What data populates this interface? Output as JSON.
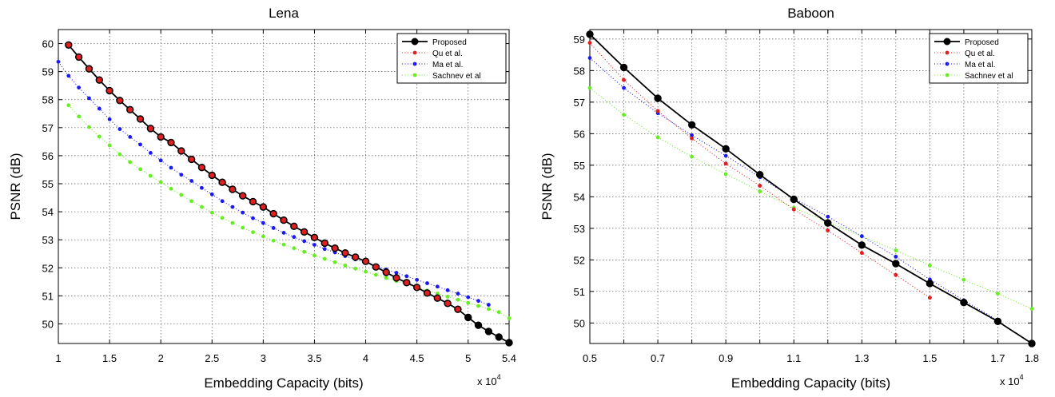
{
  "chart_data": [
    {
      "type": "line",
      "title": "Lena",
      "xlabel": "Embedding Capacity (bits)",
      "ylabel": "PSNR (dB)",
      "x_multiplier": {
        "base": "x 10",
        "exp": "4"
      },
      "xlim": [
        1,
        5.4
      ],
      "ylim": [
        49.3,
        60.5
      ],
      "x_ticks": [
        "1",
        "1.5",
        "2",
        "2.5",
        "3",
        "3.5",
        "4",
        "4.5",
        "5",
        "5.4"
      ],
      "y_ticks": [
        "50",
        "51",
        "52",
        "53",
        "54",
        "55",
        "56",
        "57",
        "58",
        "59",
        "60"
      ],
      "grid": true,
      "legend_position": "top-right",
      "series": [
        {
          "name": "Proposed",
          "color": "#000000",
          "style": "solid",
          "marker": "filled-circle",
          "x": [
            1.1,
            1.2,
            1.3,
            1.4,
            1.5,
            1.6,
            1.7,
            1.8,
            1.9,
            2.0,
            2.1,
            2.2,
            2.3,
            2.4,
            2.5,
            2.6,
            2.7,
            2.8,
            2.9,
            3.0,
            3.1,
            3.2,
            3.3,
            3.4,
            3.5,
            3.6,
            3.7,
            3.8,
            3.9,
            4.0,
            4.1,
            4.2,
            4.3,
            4.4,
            4.5,
            4.6,
            4.7,
            4.8,
            4.9,
            5.0,
            5.1,
            5.2,
            5.3,
            5.4
          ],
          "y": [
            59.95,
            59.52,
            59.1,
            58.7,
            58.32,
            57.97,
            57.64,
            57.31,
            56.97,
            56.67,
            56.47,
            56.17,
            55.87,
            55.58,
            55.3,
            55.05,
            54.8,
            54.57,
            54.36,
            54.17,
            53.93,
            53.7,
            53.48,
            53.28,
            53.08,
            52.88,
            52.7,
            52.53,
            52.38,
            52.23,
            52.03,
            51.84,
            51.64,
            51.47,
            51.3,
            51.1,
            50.92,
            50.73,
            50.52,
            50.23,
            49.95,
            49.73,
            49.53,
            49.33
          ]
        },
        {
          "name": "Qu et al.",
          "color": "#e02020",
          "style": "dotted",
          "marker": "dot",
          "x": [
            1.1,
            1.2,
            1.3,
            1.4,
            1.5,
            1.6,
            1.7,
            1.8,
            1.9,
            2.0,
            2.1,
            2.2,
            2.3,
            2.4,
            2.5,
            2.6,
            2.7,
            2.8,
            2.9,
            3.0,
            3.1,
            3.2,
            3.3,
            3.4,
            3.5,
            3.6,
            3.7,
            3.8,
            3.9,
            4.0,
            4.1,
            4.2,
            4.3,
            4.4,
            4.5,
            4.6,
            4.7,
            4.8,
            4.9
          ],
          "y": [
            59.95,
            59.52,
            59.1,
            58.7,
            58.32,
            57.97,
            57.64,
            57.31,
            56.97,
            56.67,
            56.47,
            56.17,
            55.87,
            55.58,
            55.3,
            55.05,
            54.8,
            54.57,
            54.36,
            54.17,
            53.93,
            53.7,
            53.48,
            53.28,
            53.08,
            52.88,
            52.7,
            52.53,
            52.38,
            52.23,
            52.03,
            51.84,
            51.64,
            51.47,
            51.3,
            51.1,
            50.92,
            50.73,
            50.52
          ]
        },
        {
          "name": "Ma et al.",
          "color": "#1a1aee",
          "style": "dotted",
          "marker": "dot",
          "x": [
            1.0,
            1.1,
            1.2,
            1.3,
            1.4,
            1.5,
            1.6,
            1.7,
            1.8,
            1.9,
            2.0,
            2.1,
            2.2,
            2.3,
            2.4,
            2.5,
            2.6,
            2.7,
            2.8,
            2.9,
            3.0,
            3.1,
            3.2,
            3.3,
            3.4,
            3.5,
            3.6,
            3.7,
            3.8,
            3.9,
            4.0,
            4.1,
            4.2,
            4.3,
            4.4,
            4.5,
            4.6,
            4.7,
            4.8,
            4.9,
            5.0,
            5.1,
            5.2
          ],
          "y": [
            59.35,
            58.85,
            58.43,
            58.05,
            57.68,
            57.3,
            56.95,
            56.67,
            56.4,
            56.1,
            55.83,
            55.57,
            55.32,
            55.1,
            54.85,
            54.62,
            54.38,
            54.17,
            53.97,
            53.77,
            53.6,
            53.42,
            53.25,
            53.1,
            52.95,
            52.82,
            52.67,
            52.55,
            52.42,
            52.3,
            52.18,
            52.06,
            51.94,
            51.82,
            51.7,
            51.57,
            51.45,
            51.33,
            51.2,
            51.08,
            50.95,
            50.82,
            50.68
          ]
        },
        {
          "name": "Sachnev et al",
          "color": "#66ee22",
          "style": "dotted",
          "marker": "dot",
          "x": [
            1.1,
            1.2,
            1.3,
            1.4,
            1.5,
            1.6,
            1.7,
            1.8,
            1.9,
            2.0,
            2.1,
            2.2,
            2.3,
            2.4,
            2.5,
            2.6,
            2.7,
            2.8,
            2.9,
            3.0,
            3.1,
            3.2,
            3.3,
            3.4,
            3.5,
            3.6,
            3.7,
            3.8,
            3.9,
            4.0,
            4.1,
            4.2,
            4.3,
            4.4,
            4.5,
            4.6,
            4.7,
            4.8,
            4.9,
            5.0,
            5.1,
            5.2,
            5.3,
            5.4
          ],
          "y": [
            57.8,
            57.4,
            57.02,
            56.68,
            56.37,
            56.05,
            55.77,
            55.52,
            55.28,
            55.05,
            54.82,
            54.6,
            54.38,
            54.17,
            53.97,
            53.78,
            53.6,
            53.43,
            53.27,
            53.12,
            52.97,
            52.83,
            52.7,
            52.57,
            52.44,
            52.32,
            52.2,
            52.08,
            51.97,
            51.86,
            51.75,
            51.64,
            51.53,
            51.42,
            51.3,
            51.19,
            51.08,
            50.97,
            50.86,
            50.75,
            50.64,
            50.53,
            50.42,
            50.2
          ]
        }
      ]
    },
    {
      "type": "line",
      "title": "Baboon",
      "xlabel": "Embedding Capacity (bits)",
      "ylabel": "PSNR (dB)",
      "x_multiplier": {
        "base": "x 10",
        "exp": "4"
      },
      "xlim": [
        0.5,
        1.8
      ],
      "ylim": [
        49.35,
        59.3
      ],
      "x_ticks": [
        "0.5",
        "0.7",
        "0.9",
        "1.1",
        "1.3",
        "1.5",
        "1.7",
        "1.8"
      ],
      "x_tick_values": [
        0.5,
        0.7,
        0.9,
        1.1,
        1.3,
        1.5,
        1.7,
        1.8
      ],
      "x_grid_values": [
        0.5,
        0.6,
        0.7,
        0.8,
        0.9,
        1.0,
        1.1,
        1.2,
        1.3,
        1.4,
        1.5,
        1.6,
        1.7,
        1.8
      ],
      "y_ticks": [
        "50",
        "51",
        "52",
        "53",
        "54",
        "55",
        "56",
        "57",
        "58",
        "59"
      ],
      "grid": true,
      "legend_position": "top-right",
      "series": [
        {
          "name": "Proposed",
          "color": "#000000",
          "style": "solid",
          "marker": "filled-circle",
          "x": [
            0.5,
            0.6,
            0.7,
            0.8,
            0.9,
            1.0,
            1.1,
            1.2,
            1.3,
            1.4,
            1.5,
            1.6,
            1.7,
            1.8
          ],
          "y": [
            59.15,
            58.1,
            57.12,
            56.28,
            55.52,
            54.7,
            53.92,
            53.17,
            52.47,
            51.88,
            51.25,
            50.65,
            50.05,
            49.35
          ]
        },
        {
          "name": "Qu et al.",
          "color": "#e02020",
          "style": "dotted",
          "marker": "dot",
          "x": [
            0.5,
            0.6,
            0.7,
            0.8,
            0.9,
            1.0,
            1.1,
            1.2,
            1.3,
            1.4,
            1.5
          ],
          "y": [
            58.88,
            57.7,
            56.72,
            55.85,
            55.05,
            54.35,
            53.6,
            52.93,
            52.22,
            51.52,
            50.8
          ]
        },
        {
          "name": "Ma et al.",
          "color": "#1a1aee",
          "style": "dotted",
          "marker": "dot",
          "x": [
            0.5,
            0.6,
            0.7,
            0.8,
            0.9,
            1.0,
            1.1,
            1.2,
            1.3,
            1.4,
            1.5,
            1.6,
            1.7
          ],
          "y": [
            58.4,
            57.45,
            56.65,
            55.95,
            55.3,
            54.62,
            53.95,
            53.37,
            52.75,
            52.1,
            51.38,
            50.72,
            50.08
          ]
        },
        {
          "name": "Sachnev et al",
          "color": "#66ee22",
          "style": "dotted",
          "marker": "dot",
          "x": [
            0.5,
            0.6,
            0.7,
            0.8,
            0.9,
            1.0,
            1.1,
            1.2,
            1.3,
            1.4,
            1.5,
            1.6,
            1.7,
            1.8
          ],
          "y": [
            57.45,
            56.6,
            55.88,
            55.27,
            54.72,
            54.17,
            53.65,
            53.2,
            52.75,
            52.3,
            51.82,
            51.37,
            50.93,
            50.45
          ]
        }
      ]
    }
  ]
}
